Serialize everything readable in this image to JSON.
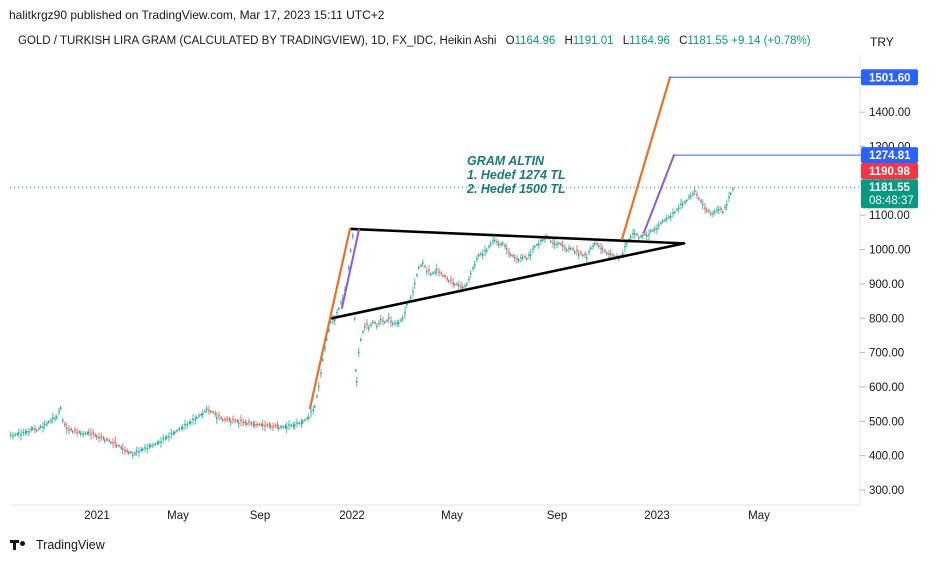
{
  "header": {
    "publisher": "halitkrgz90 published on TradingView.com, Mar 17, 2023 15:11 UTC+2",
    "symbol": "GOLD / TURKISH LIRA GRAM (CALCULATED BY TRADINGVIEW), 1D, FX_IDC, Heikin Ashi",
    "open_label": "O",
    "open": "1164.96",
    "high_label": "H",
    "high": "1191.01",
    "low_label": "L",
    "low": "1164.96",
    "close_label": "C",
    "close": "1181.55",
    "change": "+9.14 (+0.78%)",
    "currency": "TRY"
  },
  "footer": {
    "brand": "TradingView"
  },
  "colors": {
    "up": "#26a69a",
    "down": "#ef5350",
    "target_line": "#2962ff",
    "orange": "#e8702a",
    "purple": "#8e5bd6",
    "annotation": "#1b7a78",
    "price_tag_last": "#089981",
    "price_tag_red": "#f23645",
    "price_tag_blue": "#2962ff"
  },
  "chart_data": {
    "type": "candlestick",
    "chart_style": "Heikin Ashi",
    "x_ticks": [
      "2021",
      "May",
      "Sep",
      "2022",
      "May",
      "Sep",
      "2023",
      "May"
    ],
    "y_ticks": [
      "300.00",
      "400.00",
      "500.00",
      "600.00",
      "700.00",
      "800.00",
      "900.00",
      "1000.00",
      "1100.00",
      "1200.00",
      "1300.00",
      "1400.00"
    ],
    "ylim": [
      265,
      1560
    ],
    "price_tags": [
      {
        "value": 1501.6,
        "label": "1501.60",
        "color": "#2962ff"
      },
      {
        "value": 1274.81,
        "label": "1274.81",
        "color": "#2962ff"
      },
      {
        "value": 1190.98,
        "label": "1190.98",
        "color": "#f23645"
      },
      {
        "value": 1181.55,
        "label": "1181.55",
        "sub": "08:48:37",
        "color": "#089981"
      }
    ],
    "annotation": [
      "GRAM ALTIN",
      "1. Hedef 1274 TL",
      "2. Hedef 1500 TL"
    ],
    "price_path": [
      [
        0,
        460
      ],
      [
        8,
        465
      ],
      [
        16,
        470
      ],
      [
        22,
        480
      ],
      [
        26,
        475
      ],
      [
        30,
        485
      ],
      [
        34,
        490
      ],
      [
        38,
        500
      ],
      [
        42,
        508
      ],
      [
        46,
        515
      ],
      [
        50,
        540
      ],
      [
        52,
        505
      ],
      [
        56,
        478
      ],
      [
        62,
        472
      ],
      [
        70,
        465
      ],
      [
        78,
        468
      ],
      [
        86,
        455
      ],
      [
        94,
        447
      ],
      [
        100,
        440
      ],
      [
        106,
        432
      ],
      [
        112,
        418
      ],
      [
        118,
        410
      ],
      [
        122,
        405
      ],
      [
        126,
        412
      ],
      [
        132,
        420
      ],
      [
        140,
        430
      ],
      [
        148,
        440
      ],
      [
        156,
        455
      ],
      [
        164,
        470
      ],
      [
        172,
        485
      ],
      [
        180,
        500
      ],
      [
        186,
        512
      ],
      [
        192,
        525
      ],
      [
        196,
        535
      ],
      [
        200,
        530
      ],
      [
        206,
        515
      ],
      [
        212,
        505
      ],
      [
        220,
        502
      ],
      [
        228,
        498
      ],
      [
        236,
        495
      ],
      [
        244,
        490
      ],
      [
        252,
        488
      ],
      [
        260,
        485
      ],
      [
        268,
        484
      ],
      [
        276,
        487
      ],
      [
        284,
        492
      ],
      [
        292,
        500
      ],
      [
        298,
        515
      ],
      [
        304,
        545
      ],
      [
        308,
        600
      ],
      [
        312,
        680
      ],
      [
        316,
        740
      ],
      [
        320,
        790
      ],
      [
        324,
        800
      ],
      [
        328,
        830
      ],
      [
        332,
        860
      ],
      [
        336,
        900
      ],
      [
        338,
        950
      ],
      [
        340,
        1000
      ],
      [
        342,
        1040
      ],
      [
        344,
        800
      ],
      [
        345,
        650
      ],
      [
        346,
        620
      ],
      [
        348,
        700
      ],
      [
        350,
        740
      ],
      [
        354,
        780
      ],
      [
        358,
        775
      ],
      [
        362,
        790
      ],
      [
        366,
        780
      ],
      [
        370,
        795
      ],
      [
        374,
        790
      ],
      [
        378,
        800
      ],
      [
        382,
        785
      ],
      [
        388,
        790
      ],
      [
        392,
        800
      ],
      [
        396,
        840
      ],
      [
        400,
        860
      ],
      [
        404,
        900
      ],
      [
        408,
        950
      ],
      [
        412,
        960
      ],
      [
        416,
        940
      ],
      [
        420,
        930
      ],
      [
        426,
        940
      ],
      [
        432,
        925
      ],
      [
        438,
        910
      ],
      [
        444,
        900
      ],
      [
        448,
        895
      ],
      [
        452,
        890
      ],
      [
        456,
        900
      ],
      [
        460,
        930
      ],
      [
        464,
        960
      ],
      [
        468,
        985
      ],
      [
        472,
        990
      ],
      [
        476,
        1000
      ],
      [
        480,
        1020
      ],
      [
        484,
        1030
      ],
      [
        488,
        1015
      ],
      [
        492,
        1020
      ],
      [
        496,
        1000
      ],
      [
        500,
        985
      ],
      [
        504,
        975
      ],
      [
        508,
        970
      ],
      [
        512,
        980
      ],
      [
        516,
        975
      ],
      [
        520,
        990
      ],
      [
        524,
        1010
      ],
      [
        528,
        1020
      ],
      [
        532,
        1030
      ],
      [
        536,
        1040
      ],
      [
        540,
        1025
      ],
      [
        544,
        1015
      ],
      [
        548,
        1020
      ],
      [
        552,
        1010
      ],
      [
        556,
        1000
      ],
      [
        560,
        1005
      ],
      [
        564,
        995
      ],
      [
        568,
        990
      ],
      [
        572,
        985
      ],
      [
        576,
        980
      ],
      [
        580,
        1005
      ],
      [
        584,
        1020
      ],
      [
        588,
        1010
      ],
      [
        592,
        1000
      ],
      [
        596,
        990
      ],
      [
        600,
        985
      ],
      [
        604,
        980
      ],
      [
        608,
        975
      ],
      [
        612,
        990
      ],
      [
        616,
        1020
      ],
      [
        620,
        1040
      ],
      [
        624,
        1050
      ],
      [
        628,
        1035
      ],
      [
        632,
        1045
      ],
      [
        636,
        1040
      ],
      [
        640,
        1055
      ],
      [
        644,
        1060
      ],
      [
        648,
        1070
      ],
      [
        652,
        1085
      ],
      [
        656,
        1090
      ],
      [
        660,
        1100
      ],
      [
        664,
        1110
      ],
      [
        668,
        1125
      ],
      [
        672,
        1135
      ],
      [
        676,
        1145
      ],
      [
        680,
        1160
      ],
      [
        684,
        1170
      ],
      [
        688,
        1150
      ],
      [
        692,
        1130
      ],
      [
        696,
        1115
      ],
      [
        700,
        1105
      ],
      [
        704,
        1110
      ],
      [
        708,
        1120
      ],
      [
        712,
        1110
      ],
      [
        716,
        1135
      ],
      [
        720,
        1165
      ],
      [
        724,
        1190
      ]
    ],
    "drawings": {
      "triangle_top": [
        [
          341,
          1060
        ],
        [
          674,
          1018
        ]
      ],
      "triangle_bottom": [
        [
          322,
          800
        ],
        [
          674,
          1018
        ]
      ],
      "orange_leg_1": [
        [
          300,
          538
        ],
        [
          340,
          1060
        ]
      ],
      "purple_leg_1": [
        [
          332,
          830
        ],
        [
          349,
          1058
        ]
      ],
      "orange_leg_2": [
        [
          612,
          1030
        ],
        [
          660,
          1501.6
        ]
      ],
      "purple_leg_2": [
        [
          634,
          1050
        ],
        [
          664,
          1274.81
        ]
      ],
      "target_line_1": [
        [
          660,
          1501.6
        ],
        [
          860,
          1501.6
        ]
      ],
      "target_line_2": [
        [
          664,
          1274.81
        ],
        [
          860,
          1274.81
        ]
      ]
    }
  }
}
